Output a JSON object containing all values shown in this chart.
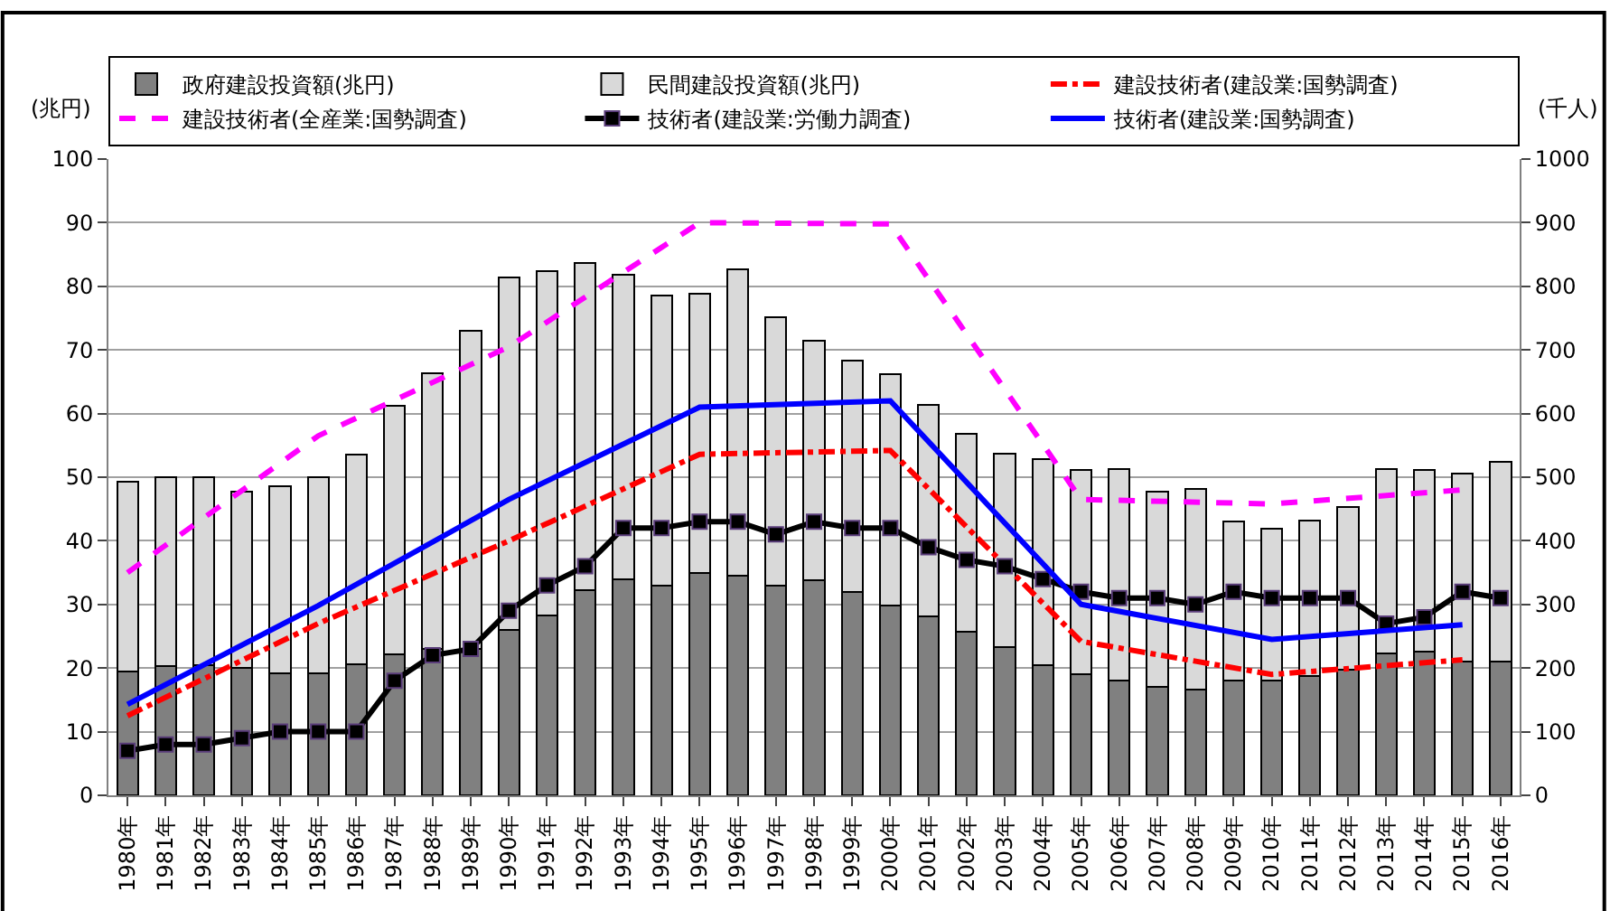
{
  "chart_data": {
    "type": "bar",
    "stacked": true,
    "ylabel": "(兆円)",
    "y2label": "(千人)",
    "x": [
      1980,
      1981,
      1982,
      1983,
      1984,
      1985,
      1986,
      1987,
      1988,
      1989,
      1990,
      1991,
      1992,
      1993,
      1994,
      1995,
      1996,
      1997,
      1998,
      1999,
      2000,
      2001,
      2002,
      2003,
      2004,
      2005,
      2006,
      2007,
      2008,
      2009,
      2010,
      2011,
      2012,
      2013,
      2014,
      2015,
      2016
    ],
    "xlim": [
      1979.5,
      2016.5
    ],
    "xticks": [
      {
        "value": 1980,
        "label": "1980年"
      },
      {
        "value": 1981,
        "label": "1981年"
      },
      {
        "value": 1982,
        "label": "1982年"
      },
      {
        "value": 1983,
        "label": "1983年"
      },
      {
        "value": 1984,
        "label": "1984年"
      },
      {
        "value": 1985,
        "label": "1985年"
      },
      {
        "value": 1986,
        "label": "1986年"
      },
      {
        "value": 1987,
        "label": "1987年"
      },
      {
        "value": 1988,
        "label": "1988年"
      },
      {
        "value": 1989,
        "label": "1989年"
      },
      {
        "value": 1990,
        "label": "1990年"
      },
      {
        "value": 1991,
        "label": "1991年"
      },
      {
        "value": 1992,
        "label": "1992年"
      },
      {
        "value": 1993,
        "label": "1993年"
      },
      {
        "value": 1994,
        "label": "1994年"
      },
      {
        "value": 1995,
        "label": "1995年"
      },
      {
        "value": 1996,
        "label": "1996年"
      },
      {
        "value": 1997,
        "label": "1997年"
      },
      {
        "value": 1998,
        "label": "1998年"
      },
      {
        "value": 1999,
        "label": "1999年"
      },
      {
        "value": 2000,
        "label": "2000年"
      },
      {
        "value": 2001,
        "label": "2001年"
      },
      {
        "value": 2002,
        "label": "2002年"
      },
      {
        "value": 2003,
        "label": "2003年"
      },
      {
        "value": 2004,
        "label": "2004年"
      },
      {
        "value": 2005,
        "label": "2005年"
      },
      {
        "value": 2006,
        "label": "2006年"
      },
      {
        "value": 2007,
        "label": "2007年"
      },
      {
        "value": 2008,
        "label": "2008年"
      },
      {
        "value": 2009,
        "label": "2009年"
      },
      {
        "value": 2010,
        "label": "2010年"
      },
      {
        "value": 2011,
        "label": "2011年"
      },
      {
        "value": 2012,
        "label": "2012年"
      },
      {
        "value": 2013,
        "label": "2013年"
      },
      {
        "value": 2014,
        "label": "2014年"
      },
      {
        "value": 2015,
        "label": "2015年"
      },
      {
        "value": 2016,
        "label": "2016年"
      }
    ],
    "ylim": [
      0,
      100
    ],
    "yticks": [
      0,
      10,
      20,
      30,
      40,
      50,
      60,
      70,
      80,
      90,
      100
    ],
    "y2lim": [
      0,
      1000
    ],
    "y2ticks": [
      0,
      100,
      200,
      300,
      400,
      500,
      600,
      700,
      800,
      900,
      1000
    ],
    "grid": "y",
    "legend": "top",
    "series": [
      {
        "name": "政府建設投資額(兆円)",
        "color": "#808080",
        "values": [
          19.5,
          20.3,
          20.5,
          20,
          19.2,
          19.2,
          20.6,
          22.2,
          23,
          23,
          26,
          28.3,
          32.3,
          34,
          33,
          35,
          34.5,
          33,
          33.8,
          32,
          29.8,
          28.1,
          25.7,
          23.3,
          20.5,
          19,
          18,
          17,
          16.6,
          18,
          18,
          18.8,
          19.8,
          22.3,
          22.6,
          21,
          21
        ]
      },
      {
        "name": "民間建設投資額(兆円)",
        "color": "#d9d9d9",
        "values": [
          29.8,
          29.7,
          29.5,
          27.7,
          29.4,
          30.8,
          32.9,
          39,
          43.4,
          50,
          55.4,
          54.1,
          51.4,
          47.8,
          45.6,
          43.9,
          48.2,
          42.1,
          37.6,
          36.3,
          36.4,
          33.2,
          31.1,
          30.4,
          32.3,
          32.2,
          33.3,
          30.7,
          31.5,
          25,
          23.9,
          24.4,
          25.5,
          29,
          28.5,
          29.6,
          31.4
        ]
      },
      {
        "name": "建設技術者(建設業:国勢調査)",
        "type": "line",
        "axis": "y2",
        "color": "#ff0000",
        "line_style": "dashdot",
        "marker": "none",
        "x": [
          1980,
          1985,
          1990,
          1995,
          2000,
          2005,
          2010,
          2015
        ],
        "values": [
          125,
          270,
          400,
          536,
          542,
          242,
          190,
          213
        ]
      },
      {
        "name": "建設技術者(全産業:国勢調査)",
        "type": "line",
        "axis": "y2",
        "color": "#ff00ff",
        "line_style": "dashed",
        "marker": "none",
        "x": [
          1980,
          1985,
          1990,
          1995,
          2000,
          2005,
          2010,
          2015
        ],
        "values": [
          350,
          565,
          705,
          900,
          898,
          465,
          458,
          480
        ]
      },
      {
        "name": "技術者(建設業:労働力調査)",
        "type": "line",
        "axis": "y2",
        "color": "#000000",
        "line_style": "solid",
        "marker": "square",
        "values": [
          70,
          80,
          80,
          90,
          100,
          100,
          100,
          180,
          220,
          230,
          290,
          330,
          360,
          420,
          420,
          430,
          430,
          410,
          430,
          420,
          420,
          390,
          370,
          360,
          340,
          320,
          310,
          310,
          300,
          320,
          310,
          310,
          310,
          270,
          280,
          320,
          310
        ]
      },
      {
        "name": "技術者(建設業:国勢調査)",
        "type": "line",
        "axis": "y2",
        "color": "#0000ff",
        "line_style": "solid",
        "marker": "none",
        "x": [
          1980,
          1985,
          1990,
          1995,
          2000,
          2005,
          2010,
          2015
        ],
        "values": [
          143,
          298,
          465,
          610,
          620,
          300,
          245,
          268
        ]
      }
    ]
  }
}
